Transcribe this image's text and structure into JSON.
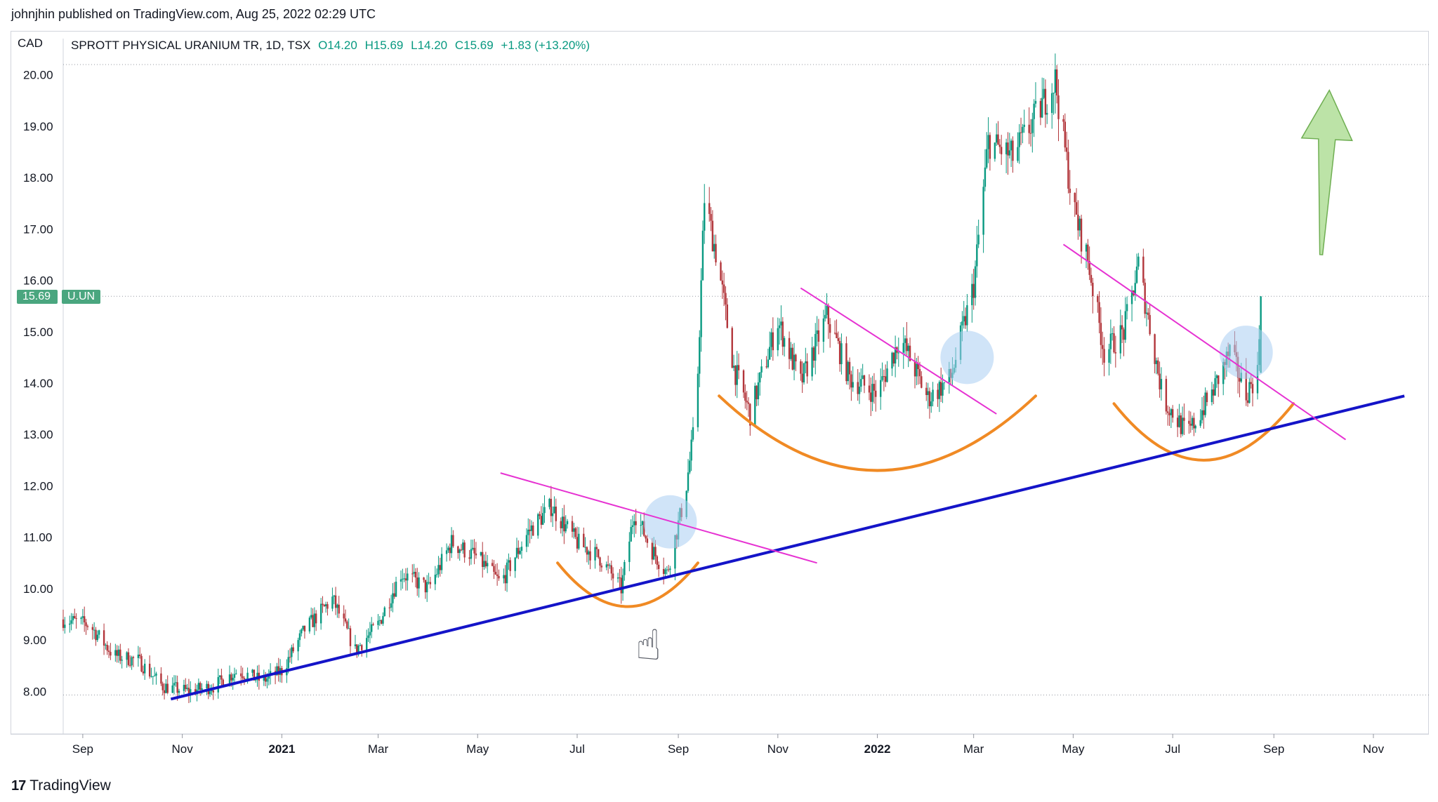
{
  "header": {
    "published": "johnjhin published on TradingView.com, Aug 25, 2022 02:29 UTC"
  },
  "chart_header": {
    "currency": "CAD",
    "symbol": "SPROTT PHYSICAL URANIUM TR, 1D, TSX",
    "open": "O14.20",
    "high": "H15.69",
    "low": "L14.20",
    "close": "C15.69",
    "change": "+1.83 (+13.20%)"
  },
  "price_badge": {
    "price": "15.69",
    "ticker": "U.UN"
  },
  "footer": {
    "brand": "TradingView"
  },
  "colors": {
    "up": "#089981",
    "down": "#b2353a",
    "trendline_support": "#1414c8",
    "trendline_resistance": "#e632d2",
    "cup": "#f08a24",
    "breakout_circle": "#a9cdf2",
    "arrow": "#a6d98a"
  },
  "icons": {
    "pointer": "hand-pointer-icon",
    "logo": "tradingview-logo-icon"
  },
  "chart_data": {
    "type": "candlestick",
    "title": "SPROTT PHYSICAL URANIUM TR, 1D, TSX",
    "ylabel": "CAD",
    "ylim": [
      7.8,
      20.2
    ],
    "y_ticks": [
      "8.00",
      "9.00",
      "10.00",
      "11.00",
      "12.00",
      "13.00",
      "14.00",
      "15.00",
      "16.00",
      "17.00",
      "18.00",
      "19.00",
      "20.00"
    ],
    "x_ticks": [
      {
        "label": "Sep",
        "date": "2020-09-01",
        "bold": false
      },
      {
        "label": "Nov",
        "date": "2020-11-01",
        "bold": false
      },
      {
        "label": "2021",
        "date": "2021-01-01",
        "bold": true
      },
      {
        "label": "Mar",
        "date": "2021-03-01",
        "bold": false
      },
      {
        "label": "May",
        "date": "2021-05-01",
        "bold": false
      },
      {
        "label": "Jul",
        "date": "2021-07-01",
        "bold": false
      },
      {
        "label": "Sep",
        "date": "2021-09-01",
        "bold": false
      },
      {
        "label": "Nov",
        "date": "2021-11-01",
        "bold": false
      },
      {
        "label": "2022",
        "date": "2022-01-01",
        "bold": true
      },
      {
        "label": "Mar",
        "date": "2022-03-01",
        "bold": false
      },
      {
        "label": "May",
        "date": "2022-05-01",
        "bold": false
      },
      {
        "label": "Jul",
        "date": "2022-07-01",
        "bold": false
      },
      {
        "label": "Sep",
        "date": "2022-09-01",
        "bold": false
      },
      {
        "label": "Nov",
        "date": "2022-11-01",
        "bold": false
      }
    ],
    "price_path": [
      [
        "2020-08-20",
        9.4
      ],
      [
        "2020-09-05",
        9.3
      ],
      [
        "2020-09-20",
        8.7
      ],
      [
        "2020-10-05",
        8.6
      ],
      [
        "2020-10-20",
        8.1
      ],
      [
        "2020-11-05",
        8.0
      ],
      [
        "2020-11-20",
        8.1
      ],
      [
        "2020-12-05",
        8.4
      ],
      [
        "2020-12-20",
        8.2
      ],
      [
        "2021-01-01",
        8.4
      ],
      [
        "2021-01-15",
        9.2
      ],
      [
        "2021-02-01",
        9.8
      ],
      [
        "2021-02-15",
        8.8
      ],
      [
        "2021-03-01",
        9.3
      ],
      [
        "2021-03-15",
        10.3
      ],
      [
        "2021-04-01",
        10.0
      ],
      [
        "2021-04-15",
        10.9
      ],
      [
        "2021-05-01",
        10.6
      ],
      [
        "2021-05-15",
        10.1
      ],
      [
        "2021-06-01",
        11.1
      ],
      [
        "2021-06-15",
        11.6
      ],
      [
        "2021-07-01",
        10.9
      ],
      [
        "2021-07-15",
        10.6
      ],
      [
        "2021-07-28",
        10.0
      ],
      [
        "2021-08-05",
        11.5
      ],
      [
        "2021-08-15",
        10.8
      ],
      [
        "2021-08-25",
        10.3
      ],
      [
        "2021-09-05",
        11.8
      ],
      [
        "2021-09-12",
        13.4
      ],
      [
        "2021-09-17",
        17.6
      ],
      [
        "2021-09-25",
        16.4
      ],
      [
        "2021-10-05",
        14.3
      ],
      [
        "2021-10-15",
        13.4
      ],
      [
        "2021-11-01",
        15.2
      ],
      [
        "2021-11-15",
        14.0
      ],
      [
        "2021-12-01",
        15.3
      ],
      [
        "2021-12-15",
        14.1
      ],
      [
        "2022-01-01",
        13.8
      ],
      [
        "2022-01-15",
        14.9
      ],
      [
        "2022-02-01",
        13.7
      ],
      [
        "2022-02-15",
        14.1
      ],
      [
        "2022-03-01",
        15.9
      ],
      [
        "2022-03-10",
        18.7
      ],
      [
        "2022-03-25",
        18.4
      ],
      [
        "2022-04-10",
        19.3
      ],
      [
        "2022-04-20",
        19.9
      ],
      [
        "2022-05-01",
        17.4
      ],
      [
        "2022-05-10",
        16.4
      ],
      [
        "2022-05-20",
        14.6
      ],
      [
        "2022-06-01",
        15.0
      ],
      [
        "2022-06-10",
        16.3
      ],
      [
        "2022-06-25",
        13.7
      ],
      [
        "2022-07-10",
        13.0
      ],
      [
        "2022-07-25",
        13.8
      ],
      [
        "2022-08-05",
        14.6
      ],
      [
        "2022-08-15",
        13.8
      ],
      [
        "2022-08-22",
        14.2
      ],
      [
        "2022-08-24",
        15.69
      ]
    ],
    "last_close": 15.69,
    "annotations": {
      "support_line": [
        [
          "2020-10-25",
          7.85
        ],
        [
          "2022-11-20",
          13.75
        ]
      ],
      "resistance_lines": [
        [
          [
            "2021-05-15",
            12.25
          ],
          [
            "2021-11-25",
            10.5
          ]
        ],
        [
          [
            "2021-11-15",
            15.85
          ],
          [
            "2022-03-15",
            13.4
          ]
        ],
        [
          [
            "2022-04-25",
            16.7
          ],
          [
            "2022-10-15",
            12.9
          ]
        ]
      ],
      "cups": [
        {
          "center": "2021-08-01",
          "top": 10.5,
          "bottom": 9.65,
          "half_width_days": 43
        },
        {
          "center": "2022-01-01",
          "top": 13.75,
          "bottom": 12.3,
          "half_width_days": 97
        },
        {
          "center": "2022-07-20",
          "top": 13.6,
          "bottom": 12.5,
          "half_width_days": 55
        }
      ],
      "breakout_circles": [
        {
          "date": "2021-08-27",
          "price": 11.3
        },
        {
          "date": "2022-02-25",
          "price": 14.5
        },
        {
          "date": "2022-08-15",
          "price": 14.6
        }
      ],
      "up_arrow": {
        "from": [
          "2022-09-30",
          16.5
        ],
        "to": [
          "2022-10-05",
          19.7
        ]
      }
    }
  }
}
